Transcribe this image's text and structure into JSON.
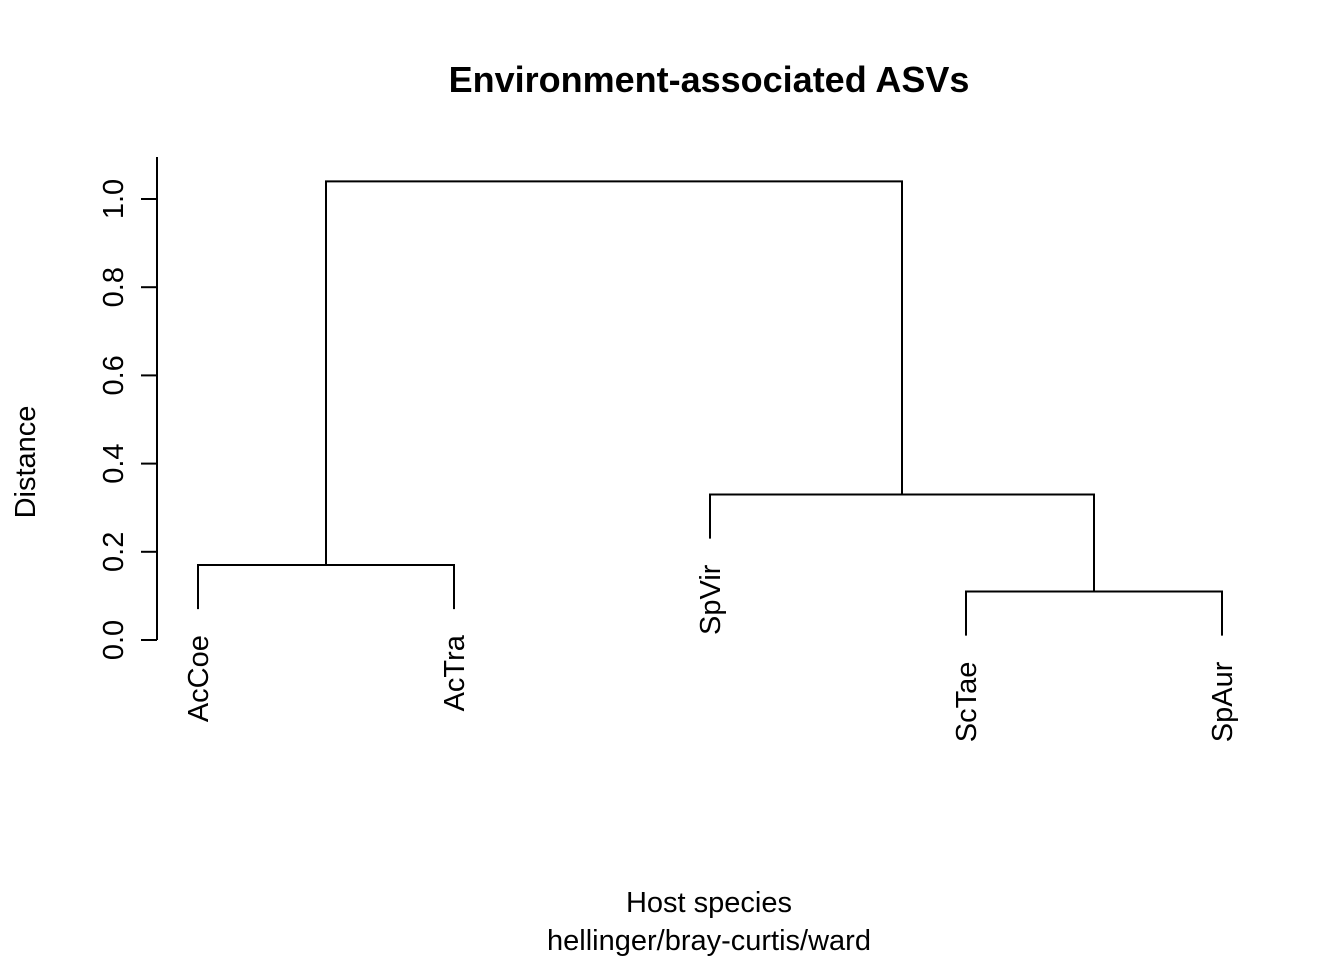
{
  "chart_data": {
    "type": "dendrogram",
    "title": "Environment-associated ASVs",
    "ylabel": "Distance",
    "xlabel": "Host species",
    "subtitle": "hellinger/bray-curtis/ward",
    "ylim": [
      0,
      1.0
    ],
    "yticks": [
      0.0,
      0.2,
      0.4,
      0.6,
      0.8,
      1.0
    ],
    "ytick_labels": [
      "0.0",
      "0.2",
      "0.4",
      "0.6",
      "0.8",
      "1.0"
    ],
    "leaves": [
      "AcCoe",
      "AcTra",
      "SpVir",
      "ScTae",
      "SpAur"
    ],
    "merges": [
      {
        "left": "AcCoe",
        "right": "AcTra",
        "height": 0.17
      },
      {
        "left": "ScTae",
        "right": "SpAur",
        "height": 0.11
      },
      {
        "left": "SpVir",
        "right": "ScTae+SpAur",
        "height": 0.33
      },
      {
        "left": "AcCoe+AcTra",
        "right": "SpVir+ScTae+SpAur",
        "height": 1.04
      }
    ]
  }
}
